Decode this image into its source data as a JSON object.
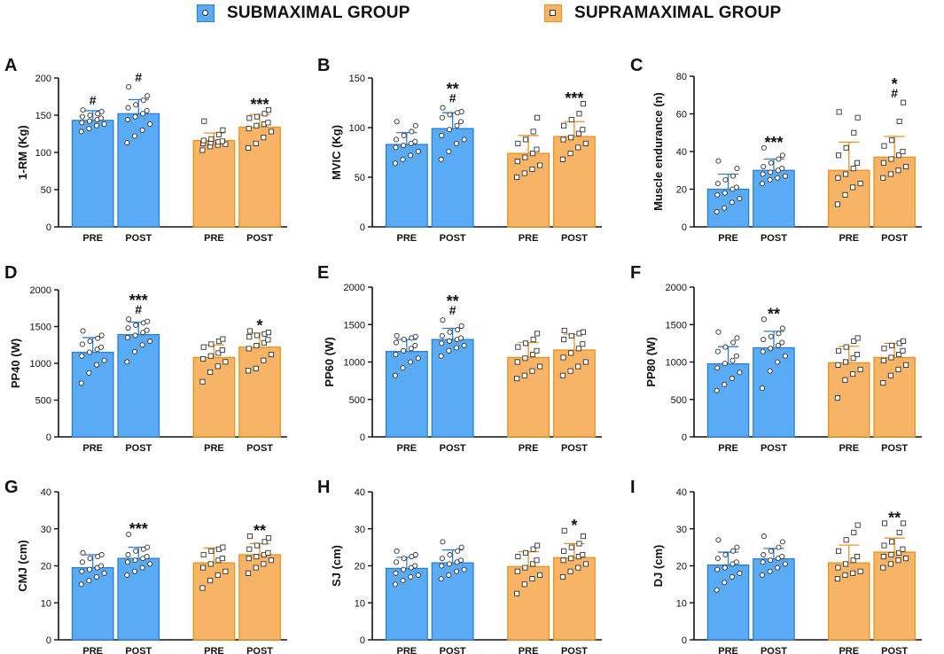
{
  "legend": [
    {
      "label": "SUBMAXIMAL GROUP",
      "color": "#5aabf5",
      "edge": "#2a7fd4",
      "marker": "circle"
    },
    {
      "label": "SUPRAMAXIMAL GROUP",
      "color": "#f7b366",
      "edge": "#e8921e",
      "marker": "square"
    }
  ],
  "chart_data": [
    {
      "panel": "A",
      "type": "bar",
      "ylabel": "1-RM (Kg)",
      "ylim": [
        0,
        200
      ],
      "yticks": [
        0,
        50,
        100,
        150,
        200
      ],
      "categories": [
        "PRE",
        "POST",
        "PRE",
        "POST"
      ],
      "groups": [
        "SUBMAXIMAL GROUP",
        "SUBMAXIMAL GROUP",
        "SUPRAMAXIMAL GROUP",
        "SUPRAMAXIMAL GROUP"
      ],
      "means": [
        143,
        152,
        116,
        134
      ],
      "sd": [
        13,
        19,
        10,
        17
      ],
      "annotations": [
        [
          "#"
        ],
        [
          "#"
        ],
        [],
        [
          "***"
        ]
      ],
      "points": [
        [
          128,
          132,
          136,
          138,
          140,
          142,
          144,
          146,
          148,
          150,
          152,
          155,
          157
        ],
        [
          113,
          122,
          130,
          138,
          144,
          148,
          152,
          156,
          160,
          164,
          170,
          176,
          188
        ],
        [
          103,
          108,
          110,
          111,
          112,
          113,
          114,
          115,
          116,
          118,
          124,
          130,
          142
        ],
        [
          106,
          112,
          120,
          128,
          132,
          136,
          138,
          140,
          146,
          148,
          152,
          157
        ]
      ]
    },
    {
      "panel": "B",
      "type": "bar",
      "ylabel": "MVIC (Kg)",
      "ylim": [
        0,
        150
      ],
      "yticks": [
        0,
        50,
        100,
        150
      ],
      "categories": [
        "PRE",
        "POST",
        "PRE",
        "POST"
      ],
      "groups": [
        "SUBMAXIMAL GROUP",
        "SUBMAXIMAL GROUP",
        "SUPRAMAXIMAL GROUP",
        "SUPRAMAXIMAL GROUP"
      ],
      "means": [
        83,
        99,
        74,
        91
      ],
      "sd": [
        12,
        16,
        18,
        15
      ],
      "annotations": [
        [],
        [
          "**",
          "#"
        ],
        [],
        [
          "***"
        ]
      ],
      "points": [
        [
          64,
          68,
          72,
          76,
          80,
          82,
          84,
          86,
          88,
          92,
          96,
          102,
          106
        ],
        [
          68,
          76,
          84,
          88,
          92,
          98,
          102,
          106,
          110,
          113,
          115,
          116,
          120
        ],
        [
          50,
          54,
          58,
          62,
          66,
          70,
          74,
          78,
          84,
          88,
          96,
          110
        ],
        [
          68,
          74,
          80,
          84,
          88,
          90,
          94,
          98,
          102,
          108,
          114,
          124
        ]
      ]
    },
    {
      "panel": "C",
      "type": "bar",
      "ylabel": "Muscle endurance (n)",
      "ylim": [
        0,
        80
      ],
      "yticks": [
        0,
        20,
        40,
        60,
        80
      ],
      "categories": [
        "PRE",
        "POST",
        "PRE",
        "POST"
      ],
      "groups": [
        "SUBMAXIMAL GROUP",
        "SUBMAXIMAL GROUP",
        "SUPRAMAXIMAL GROUP",
        "SUPRAMAXIMAL GROUP"
      ],
      "means": [
        20,
        30,
        30,
        37
      ],
      "sd": [
        8,
        6,
        15,
        11
      ],
      "annotations": [
        [],
        [
          "***"
        ],
        [],
        [
          "*",
          "#"
        ]
      ],
      "points": [
        [
          8,
          10,
          13,
          15,
          17,
          18,
          20,
          21,
          23,
          25,
          27,
          31,
          35
        ],
        [
          23,
          25,
          26,
          27,
          28,
          29,
          30,
          31,
          32,
          34,
          36,
          38,
          42
        ],
        [
          12,
          17,
          21,
          23,
          26,
          28,
          31,
          34,
          38,
          42,
          50,
          58,
          61
        ],
        [
          26,
          28,
          30,
          32,
          34,
          36,
          38,
          40,
          43,
          46,
          56,
          66
        ]
      ]
    },
    {
      "panel": "D",
      "type": "bar",
      "ylabel": "PP40 (W)",
      "ylim": [
        0,
        2000
      ],
      "yticks": [
        0,
        500,
        1000,
        1500,
        2000
      ],
      "categories": [
        "PRE",
        "POST",
        "PRE",
        "POST"
      ],
      "groups": [
        "SUBMAXIMAL GROUP",
        "SUBMAXIMAL GROUP",
        "SUPRAMAXIMAL GROUP",
        "SUPRAMAXIMAL GROUP"
      ],
      "means": [
        1150,
        1390,
        1080,
        1220
      ],
      "sd": [
        200,
        170,
        170,
        190
      ],
      "annotations": [
        [],
        [
          "***",
          "#"
        ],
        [],
        [
          "*"
        ]
      ],
      "points": [
        [
          730,
          870,
          980,
          1040,
          1100,
          1150,
          1190,
          1220,
          1260,
          1300,
          1340,
          1380,
          1440
        ],
        [
          1020,
          1160,
          1250,
          1300,
          1350,
          1380,
          1420,
          1450,
          1480,
          1520,
          1550,
          1570,
          1600
        ],
        [
          750,
          880,
          960,
          1020,
          1060,
          1100,
          1140,
          1180,
          1220,
          1260,
          1300,
          1330
        ],
        [
          900,
          930,
          1040,
          1120,
          1200,
          1240,
          1280,
          1320,
          1360,
          1380,
          1400,
          1420,
          1440
        ]
      ]
    },
    {
      "panel": "E",
      "type": "bar",
      "ylabel": "PP60 (W)",
      "ylim": [
        0,
        2000
      ],
      "yticks": [
        0,
        500,
        1000,
        1500,
        2000
      ],
      "categories": [
        "PRE",
        "POST",
        "PRE",
        "POST"
      ],
      "groups": [
        "SUBMAXIMAL GROUP",
        "SUBMAXIMAL GROUP",
        "SUPRAMAXIMAL GROUP",
        "SUPRAMAXIMAL GROUP"
      ],
      "means": [
        1140,
        1300,
        1060,
        1160
      ],
      "sd": [
        160,
        150,
        200,
        210
      ],
      "annotations": [
        [],
        [
          "**",
          "#"
        ],
        [],
        []
      ],
      "points": [
        [
          820,
          920,
          1000,
          1050,
          1100,
          1150,
          1180,
          1220,
          1260,
          1300,
          1320,
          1340,
          1350
        ],
        [
          1080,
          1150,
          1190,
          1220,
          1250,
          1280,
          1300,
          1320,
          1350,
          1400,
          1430,
          1480,
          1560
        ],
        [
          780,
          820,
          880,
          940,
          1000,
          1050,
          1100,
          1150,
          1200,
          1250,
          1300,
          1380
        ],
        [
          820,
          880,
          940,
          1000,
          1060,
          1120,
          1180,
          1240,
          1300,
          1350,
          1380,
          1400,
          1420
        ]
      ]
    },
    {
      "panel": "F",
      "type": "bar",
      "ylabel": "PP80 (W)",
      "ylim": [
        0,
        2000
      ],
      "yticks": [
        0,
        500,
        1000,
        1500,
        2000
      ],
      "categories": [
        "PRE",
        "POST",
        "PRE",
        "POST"
      ],
      "groups": [
        "SUBMAXIMAL GROUP",
        "SUBMAXIMAL GROUP",
        "SUPRAMAXIMAL GROUP",
        "SUPRAMAXIMAL GROUP"
      ],
      "means": [
        975,
        1190,
        990,
        1060
      ],
      "sd": [
        230,
        220,
        220,
        190
      ],
      "annotations": [
        [],
        [
          "**"
        ],
        [],
        []
      ],
      "points": [
        [
          620,
          700,
          780,
          860,
          920,
          980,
          1020,
          1080,
          1140,
          1200,
          1260,
          1320,
          1400
        ],
        [
          650,
          880,
          1000,
          1080,
          1140,
          1180,
          1220,
          1260,
          1300,
          1340,
          1380,
          1450,
          1570
        ],
        [
          520,
          760,
          840,
          900,
          960,
          1000,
          1050,
          1100,
          1150,
          1200,
          1280,
          1320
        ],
        [
          720,
          820,
          900,
          960,
          1020,
          1060,
          1100,
          1150,
          1180,
          1220,
          1250,
          1280
        ]
      ]
    },
    {
      "panel": "G",
      "type": "bar",
      "ylabel": "CMJ (cm)",
      "ylim": [
        0,
        40
      ],
      "yticks": [
        0,
        10,
        20,
        30,
        40
      ],
      "categories": [
        "PRE",
        "POST",
        "PRE",
        "POST"
      ],
      "groups": [
        "SUBMAXIMAL GROUP",
        "SUBMAXIMAL GROUP",
        "SUPRAMAXIMAL GROUP",
        "SUPRAMAXIMAL GROUP"
      ],
      "means": [
        19.5,
        22,
        20.8,
        23
      ],
      "sd": [
        3.5,
        3.0,
        4.0,
        3.0
      ],
      "annotations": [
        [],
        [
          "***"
        ],
        [],
        [
          "**"
        ]
      ],
      "points": [
        [
          15,
          16,
          17,
          18,
          18.5,
          19,
          19.5,
          20,
          21,
          22,
          22.5,
          23,
          23.5
        ],
        [
          17.5,
          18.5,
          19.5,
          20.5,
          21,
          21.5,
          22,
          22.5,
          23,
          24,
          24.5,
          25,
          28.5
        ],
        [
          14,
          16,
          17.5,
          18.5,
          19.5,
          20.5,
          21.5,
          22,
          23,
          24,
          24.5,
          25
        ],
        [
          18,
          19.5,
          20.5,
          21.5,
          22,
          22.5,
          23,
          23.5,
          24.5,
          25.5,
          26.5,
          27.5,
          28
        ]
      ]
    },
    {
      "panel": "H",
      "type": "bar",
      "ylabel": "SJ (cm)",
      "ylim": [
        0,
        40
      ],
      "yticks": [
        0,
        10,
        20,
        30,
        40
      ],
      "categories": [
        "PRE",
        "POST",
        "PRE",
        "POST"
      ],
      "groups": [
        "SUBMAXIMAL GROUP",
        "SUBMAXIMAL GROUP",
        "SUPRAMAXIMAL GROUP",
        "SUPRAMAXIMAL GROUP"
      ],
      "means": [
        19.3,
        20.8,
        19.8,
        22.2
      ],
      "sd": [
        3.0,
        3.5,
        4.0,
        3.8
      ],
      "annotations": [
        [],
        [],
        [],
        [
          "*"
        ]
      ],
      "points": [
        [
          15,
          16,
          17,
          17.5,
          18,
          19,
          19.5,
          20,
          21,
          22,
          22.5,
          23,
          24
        ],
        [
          16.5,
          17.5,
          18.5,
          19,
          20,
          20.5,
          21,
          21.5,
          22,
          23,
          24,
          25,
          26.5
        ],
        [
          12.5,
          15,
          16.5,
          17.5,
          18.5,
          19.5,
          20.5,
          21.5,
          22.5,
          23.5,
          24.5,
          25.5
        ],
        [
          17,
          18.5,
          19.5,
          20.5,
          21.5,
          22,
          22.5,
          23,
          24,
          25,
          26,
          28,
          29.5
        ]
      ]
    },
    {
      "panel": "I",
      "type": "bar",
      "ylabel": "DJ (cm)",
      "ylim": [
        0,
        40
      ],
      "yticks": [
        0,
        10,
        20,
        30,
        40
      ],
      "categories": [
        "PRE",
        "POST",
        "PRE",
        "POST"
      ],
      "groups": [
        "SUBMAXIMAL GROUP",
        "SUBMAXIMAL GROUP",
        "SUPRAMAXIMAL GROUP",
        "SUPRAMAXIMAL GROUP"
      ],
      "means": [
        20.2,
        21.9,
        20.8,
        23.7
      ],
      "sd": [
        3.5,
        2.8,
        4.8,
        3.8
      ],
      "annotations": [
        [],
        [],
        [],
        [
          "**"
        ]
      ],
      "points": [
        [
          13.5,
          15.5,
          17,
          18,
          19,
          19.5,
          20.5,
          21,
          22,
          23,
          24,
          25,
          27
        ],
        [
          17.5,
          18.5,
          19.5,
          20.5,
          21,
          21.5,
          22,
          22.5,
          23,
          24,
          25,
          26.5,
          28
        ],
        [
          16.5,
          17.5,
          18,
          18.5,
          19.5,
          20.5,
          21.5,
          22.5,
          24,
          27,
          29,
          31
        ],
        [
          19.5,
          20.5,
          21.5,
          22,
          22.5,
          23,
          23.5,
          24.5,
          25.5,
          26.5,
          29,
          31.5,
          31.5
        ]
      ]
    }
  ]
}
